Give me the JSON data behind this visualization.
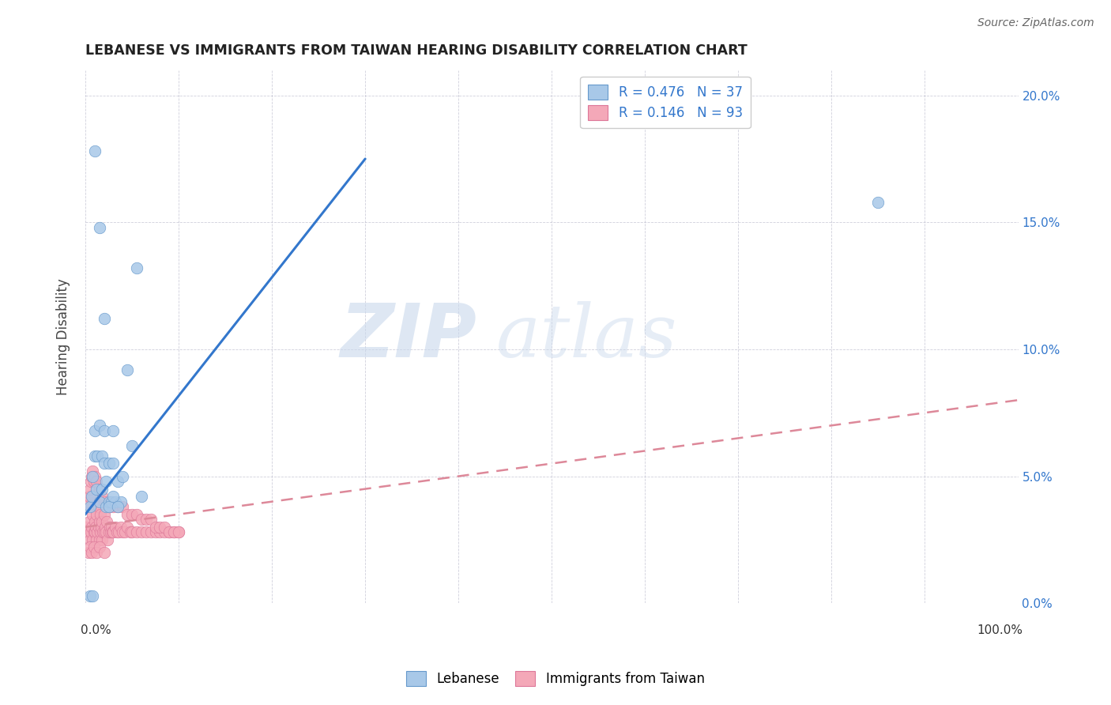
{
  "title": "LEBANESE VS IMMIGRANTS FROM TAIWAN HEARING DISABILITY CORRELATION CHART",
  "source": "Source: ZipAtlas.com",
  "ylabel": "Hearing Disability",
  "right_yticks": [
    0.0,
    0.05,
    0.1,
    0.15,
    0.2
  ],
  "right_yticklabels": [
    "0.0%",
    "5.0%",
    "10.0%",
    "15.0%",
    "20.0%"
  ],
  "xlim": [
    0.0,
    1.0
  ],
  "ylim": [
    0.0,
    0.21
  ],
  "watermark_zip": "ZIP",
  "watermark_atlas": "atlas",
  "blue_color": "#a8c8e8",
  "pink_color": "#f4a8b8",
  "blue_edge": "#6699cc",
  "pink_edge": "#dd7799",
  "blue_trend_color": "#3377cc",
  "pink_trend_color": "#dd8899",
  "legend_text_color": "#3377cc",
  "legend_entry1": "R = 0.476   N = 37",
  "legend_entry2": "R = 0.146   N = 93",
  "lebanese_x": [
    0.005,
    0.007,
    0.008,
    0.01,
    0.01,
    0.012,
    0.013,
    0.015,
    0.015,
    0.018,
    0.018,
    0.02,
    0.02,
    0.022,
    0.022,
    0.025,
    0.025,
    0.028,
    0.03,
    0.03,
    0.032,
    0.035,
    0.038,
    0.04,
    0.045,
    0.05,
    0.055,
    0.06,
    0.01,
    0.015,
    0.02,
    0.025,
    0.03,
    0.035,
    0.85,
    0.005,
    0.008
  ],
  "lebanese_y": [
    0.038,
    0.042,
    0.05,
    0.058,
    0.068,
    0.045,
    0.058,
    0.04,
    0.07,
    0.045,
    0.058,
    0.055,
    0.068,
    0.038,
    0.048,
    0.04,
    0.055,
    0.04,
    0.055,
    0.068,
    0.04,
    0.048,
    0.04,
    0.05,
    0.092,
    0.062,
    0.132,
    0.042,
    0.178,
    0.148,
    0.112,
    0.038,
    0.042,
    0.038,
    0.158,
    0.003,
    0.003
  ],
  "taiwan_x": [
    0.002,
    0.003,
    0.004,
    0.005,
    0.006,
    0.006,
    0.007,
    0.008,
    0.008,
    0.009,
    0.01,
    0.01,
    0.01,
    0.011,
    0.012,
    0.012,
    0.013,
    0.014,
    0.014,
    0.015,
    0.015,
    0.016,
    0.016,
    0.017,
    0.018,
    0.018,
    0.019,
    0.02,
    0.02,
    0.021,
    0.022,
    0.023,
    0.024,
    0.025,
    0.026,
    0.027,
    0.028,
    0.029,
    0.03,
    0.032,
    0.034,
    0.036,
    0.038,
    0.04,
    0.042,
    0.045,
    0.048,
    0.05,
    0.055,
    0.06,
    0.065,
    0.07,
    0.075,
    0.08,
    0.085,
    0.09,
    0.095,
    0.1,
    0.003,
    0.004,
    0.005,
    0.006,
    0.007,
    0.008,
    0.009,
    0.01,
    0.012,
    0.015,
    0.018,
    0.02,
    0.025,
    0.03,
    0.035,
    0.04,
    0.045,
    0.05,
    0.055,
    0.06,
    0.065,
    0.07,
    0.075,
    0.08,
    0.085,
    0.09,
    0.095,
    0.1,
    0.003,
    0.005,
    0.007,
    0.009,
    0.012,
    0.015,
    0.02
  ],
  "taiwan_y": [
    0.03,
    0.028,
    0.032,
    0.025,
    0.028,
    0.038,
    0.03,
    0.025,
    0.035,
    0.028,
    0.028,
    0.032,
    0.04,
    0.03,
    0.025,
    0.035,
    0.028,
    0.03,
    0.038,
    0.025,
    0.032,
    0.028,
    0.035,
    0.03,
    0.025,
    0.032,
    0.028,
    0.028,
    0.035,
    0.03,
    0.028,
    0.032,
    0.025,
    0.028,
    0.03,
    0.028,
    0.03,
    0.028,
    0.028,
    0.03,
    0.028,
    0.028,
    0.03,
    0.028,
    0.028,
    0.03,
    0.028,
    0.028,
    0.028,
    0.028,
    0.028,
    0.028,
    0.028,
    0.028,
    0.028,
    0.028,
    0.028,
    0.028,
    0.04,
    0.042,
    0.045,
    0.048,
    0.05,
    0.052,
    0.048,
    0.05,
    0.048,
    0.045,
    0.042,
    0.04,
    0.038,
    0.038,
    0.038,
    0.038,
    0.035,
    0.035,
    0.035,
    0.033,
    0.033,
    0.033,
    0.03,
    0.03,
    0.03,
    0.028,
    0.028,
    0.028,
    0.02,
    0.022,
    0.02,
    0.022,
    0.02,
    0.022,
    0.02
  ],
  "leb_trend_x0": 0.0,
  "leb_trend_x1": 0.3,
  "leb_trend_y0": 0.035,
  "leb_trend_y1": 0.175,
  "tai_trend_x0": 0.0,
  "tai_trend_x1": 1.0,
  "tai_trend_y0": 0.03,
  "tai_trend_y1": 0.08
}
